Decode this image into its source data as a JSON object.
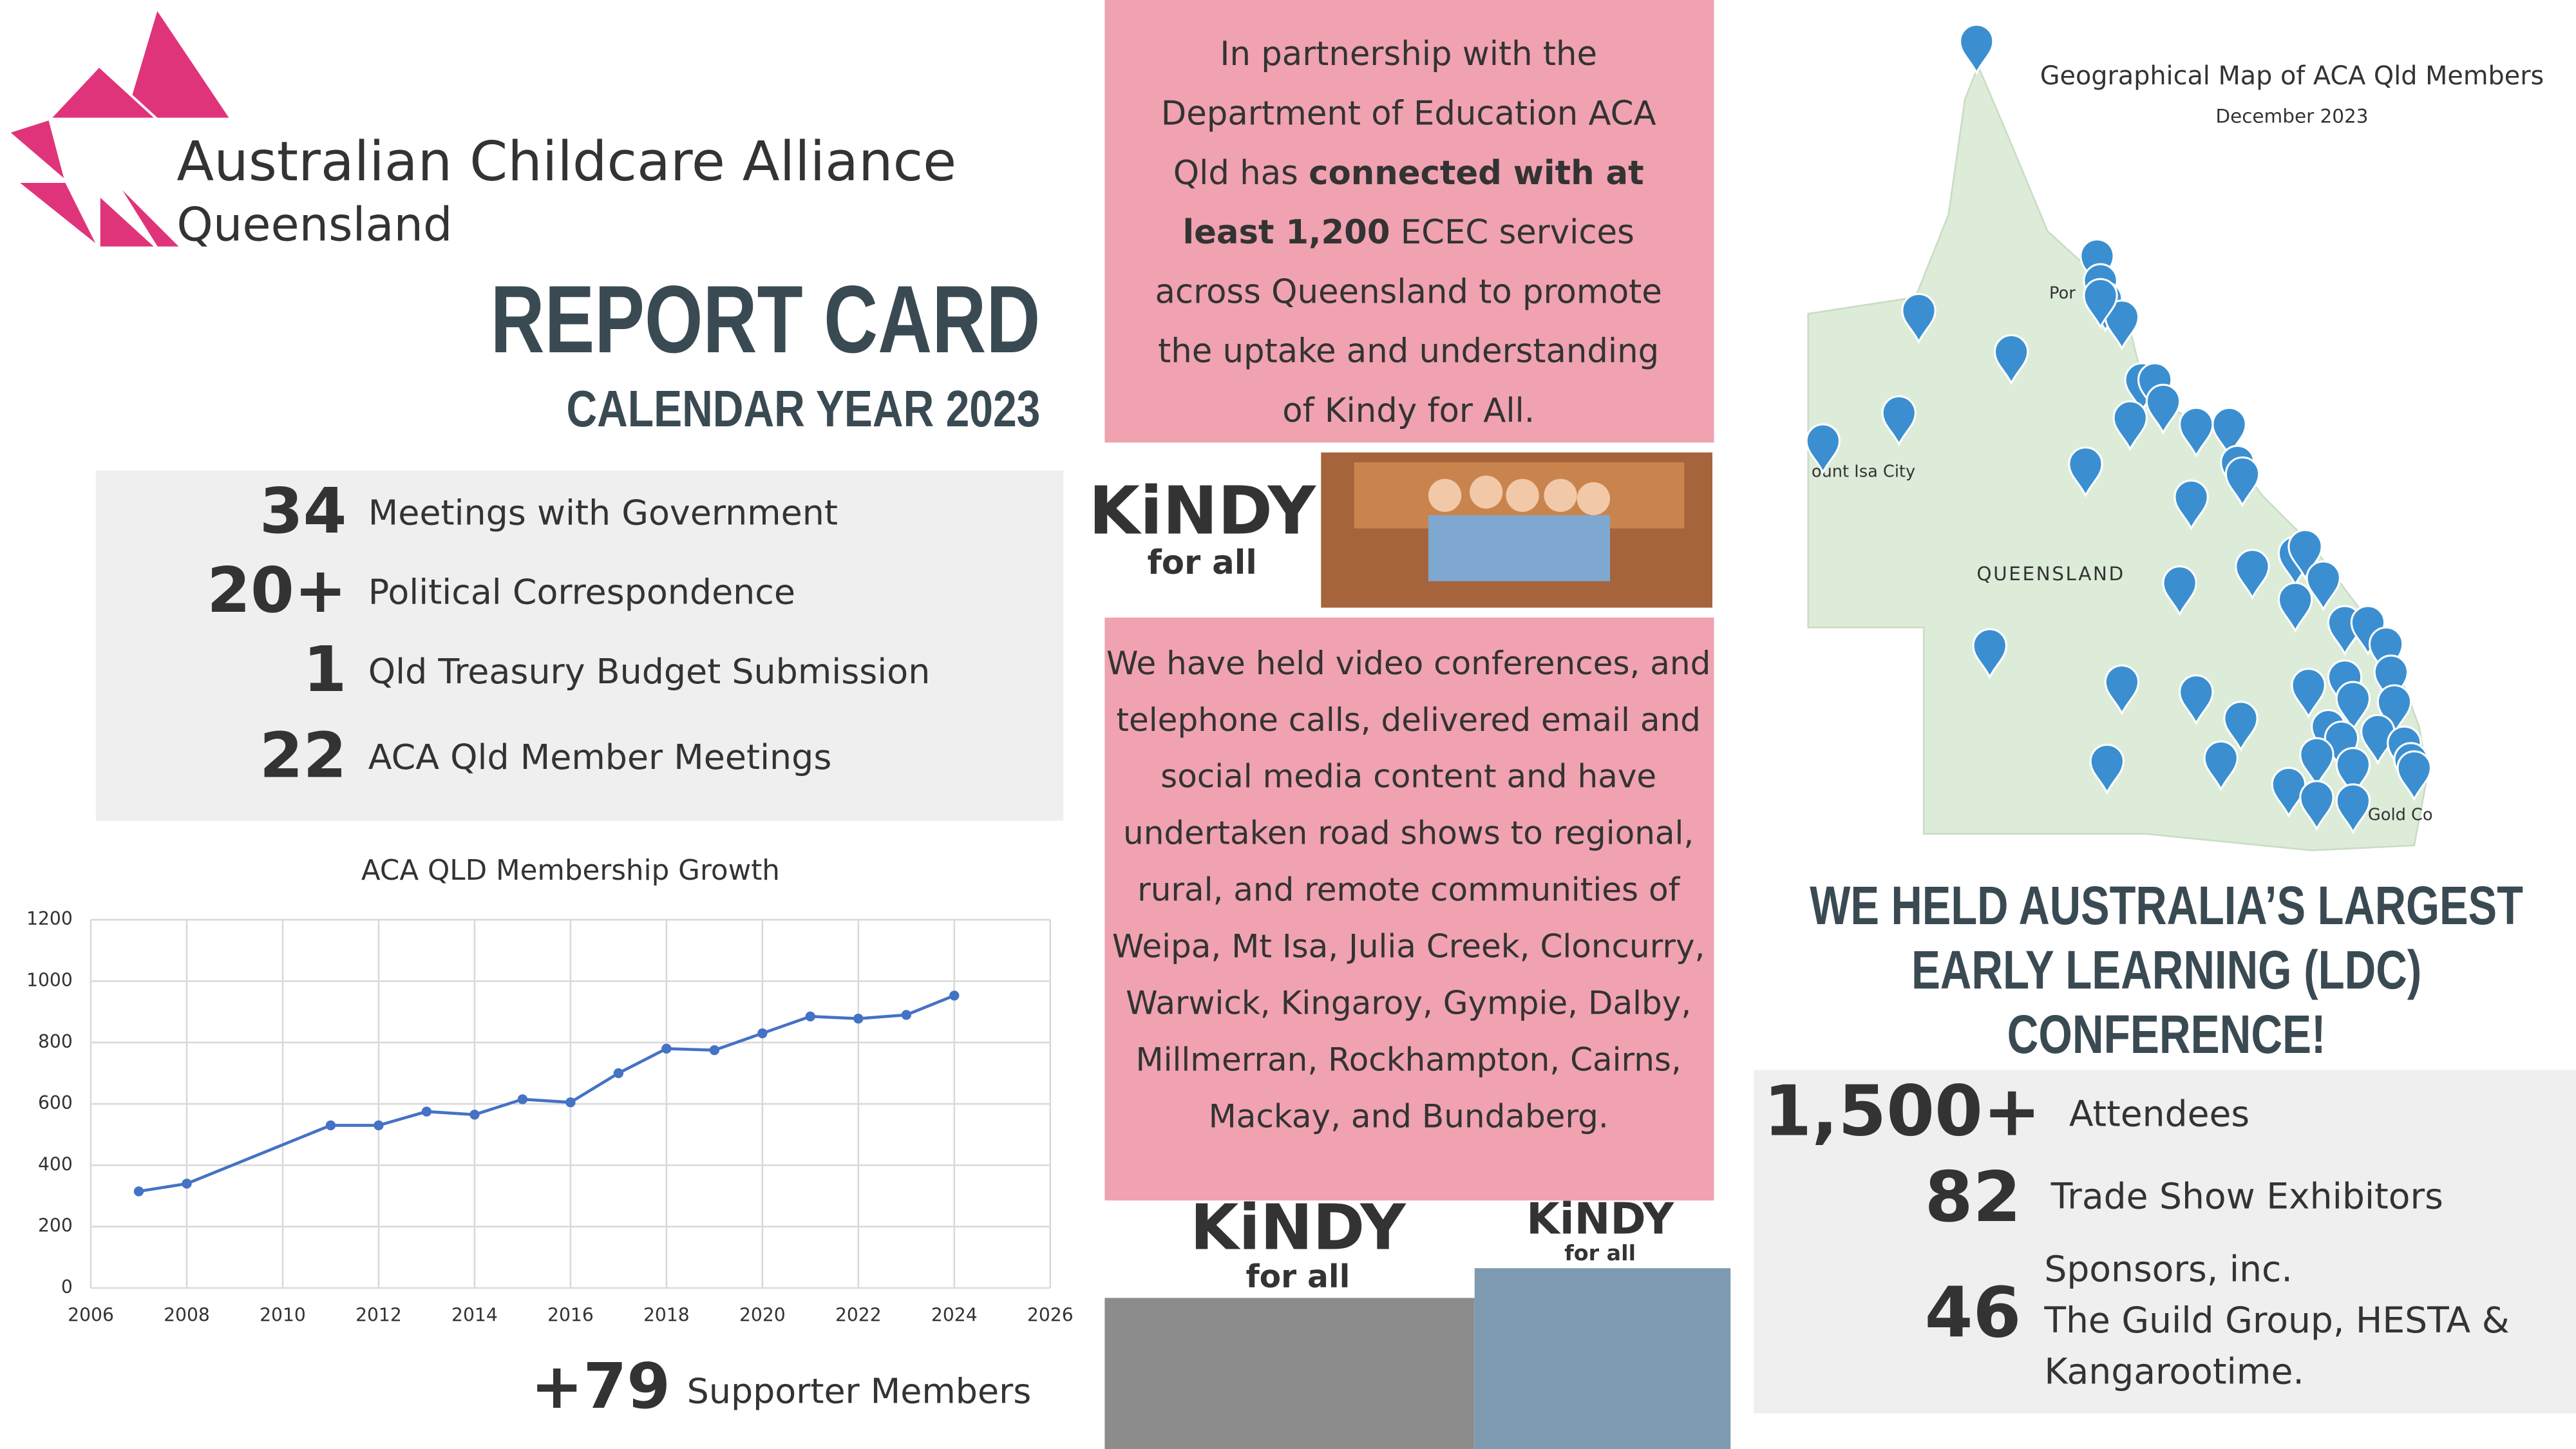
{
  "header": {
    "org": "Australian Childcare Alliance",
    "region": "Queensland",
    "title": "REPORT CARD",
    "subtitle": "CALENDAR YEAR 2023"
  },
  "stats": [
    {
      "number": "34",
      "label": "Meetings with Government"
    },
    {
      "number": "20+",
      "label": "Political Correspondence"
    },
    {
      "number": "1",
      "label": "Qld Treasury Budget Submission"
    },
    {
      "number": "22",
      "label": "ACA Qld Member Meetings"
    }
  ],
  "chart_data": {
    "type": "line",
    "title": "ACA QLD Membership Growth",
    "x": [
      2007,
      2008,
      2011,
      2012,
      2013,
      2014,
      2015,
      2016,
      2017,
      2018,
      2019,
      2020,
      2021,
      2022,
      2023,
      2024
    ],
    "values": [
      315,
      340,
      530,
      530,
      575,
      565,
      615,
      605,
      700,
      780,
      775,
      830,
      885,
      878,
      890,
      953
    ],
    "color": "#4472c4",
    "xlim": [
      2006,
      2026
    ],
    "xticks": [
      2006,
      2008,
      2010,
      2012,
      2014,
      2016,
      2018,
      2020,
      2022,
      2024,
      2026
    ],
    "ylim": [
      0,
      1200
    ],
    "yticks": [
      0,
      200,
      400,
      600,
      800,
      1000,
      1200
    ],
    "grid": true
  },
  "supporters": {
    "number": "+79",
    "label": "Supporter Members"
  },
  "partnership": {
    "lines": [
      [
        {
          "text": "In partnership with the",
          "bold": false
        }
      ],
      [
        {
          "text": "Department of Education ACA",
          "bold": false
        }
      ],
      [
        {
          "text": "Qld has ",
          "bold": false
        },
        {
          "text": "connected with at",
          "bold": true
        }
      ],
      [
        {
          "text": "least 1,200",
          "bold": true
        },
        {
          "text": " ECEC services",
          "bold": false
        }
      ],
      [
        {
          "text": "across Queensland to promote",
          "bold": false
        }
      ],
      [
        {
          "text": "the uptake and understanding",
          "bold": false
        }
      ],
      [
        {
          "text": "of Kindy for All.",
          "bold": false
        }
      ]
    ]
  },
  "kindy": {
    "logo": "KiNDY",
    "tagline": "for all"
  },
  "outreach": {
    "lines": [
      "We have held video conferences, and",
      "telephone calls, delivered email and",
      "social media content and have",
      "undertaken road shows to regional,",
      "rural, and remote communities of",
      "Weipa, Mt Isa, Julia Creek, Cloncurry,",
      "Warwick, Kingaroy, Gympie, Dalby,",
      "Millmerran, Rockhampton, Cairns,",
      "Mackay, and Bundaberg."
    ]
  },
  "map": {
    "title": "Geographical Map of ACA Qld Members",
    "date": "December 2023",
    "state": "QUEENSLAND",
    "places": [
      "ount Isa City",
      "Por",
      "Gold Co"
    ]
  },
  "conference": {
    "heading": [
      "WE HELD AUSTRALIA’S LARGEST",
      "EARLY LEARNING (LDC)",
      "CONFERENCE!"
    ],
    "stats": [
      {
        "number": "1,500+",
        "lines": [
          "Attendees"
        ]
      },
      {
        "number": "82",
        "lines": [
          "Trade Show Exhibitors"
        ]
      },
      {
        "number": "46",
        "lines": [
          "Sponsors, inc.",
          "The Guild Group, HESTA &",
          "Kangarootime."
        ]
      }
    ]
  }
}
